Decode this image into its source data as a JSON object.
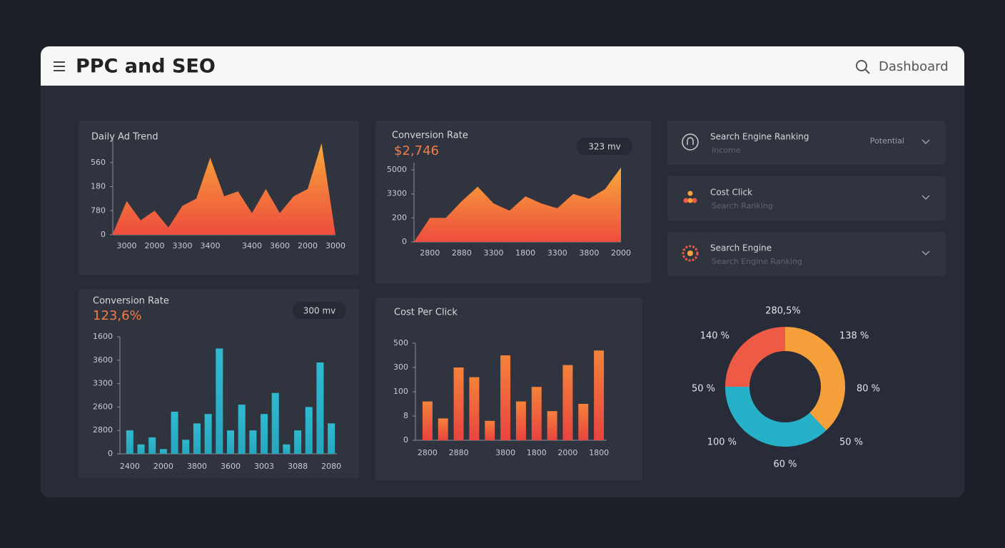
{
  "header": {
    "title": "PPC and SEO",
    "search": "Dashboard"
  },
  "list": [
    {
      "title": "Search Engine Ranking",
      "subtitle": "Income",
      "tag": "Potential"
    },
    {
      "title": "Cost Click",
      "subtitle": "Search Ranking"
    },
    {
      "title": "Search Engine",
      "subtitle": "Search Engine Ranking"
    }
  ],
  "chart_data": [
    {
      "type": "area",
      "title": "Daily Ad Trend",
      "colors": [
        "#f8a83a",
        "#ee4d3e"
      ],
      "categories": [
        null,
        "3000",
        null,
        "2000",
        null,
        "3300",
        null,
        "3400",
        null,
        null,
        "3400",
        null,
        "3600",
        null,
        "2000",
        null,
        "3000"
      ],
      "values": [
        0.05,
        1.4,
        0.6,
        1.0,
        0.3,
        1.2,
        1.5,
        3.2,
        1.6,
        1.8,
        0.9,
        1.9,
        0.9,
        1.6,
        1.9,
        3.8,
        0
      ],
      "ylim": [
        0,
        4
      ],
      "yticks": [
        0,
        {
          "value": 1,
          "label": "780"
        },
        {
          "value": 2,
          "label": "180"
        },
        {
          "value": 3,
          "label": "560"
        }
      ]
    },
    {
      "type": "area",
      "title": "Conversion Rate",
      "kpi": "$2,746",
      "badge": "323 mv",
      "colors": [
        "#f8a83a",
        "#ee4d3e"
      ],
      "categories": [
        null,
        "2800",
        null,
        "2880",
        null,
        "3300",
        null,
        "1800",
        null,
        "3300",
        null,
        "3800",
        null,
        "2000"
      ],
      "values": [
        0,
        1.0,
        1.0,
        1.7,
        2.3,
        1.6,
        1.3,
        1.9,
        1.6,
        1.4,
        2.0,
        1.8,
        2.2,
        3.1
      ],
      "ylim": [
        0,
        3.3
      ],
      "yticks": [
        0,
        {
          "value": 1,
          "label": "200"
        },
        {
          "value": 2,
          "label": "3300"
        },
        {
          "value": 3,
          "label": "5000"
        }
      ]
    },
    {
      "type": "bar",
      "title": "Conversion Rate",
      "kpi": "123,6%",
      "badge": "300 mv",
      "colors": [
        "#2fbad0",
        "#26a6bf"
      ],
      "categories": [
        "2400",
        null,
        null,
        "2000",
        null,
        null,
        "3800",
        null,
        null,
        "3600",
        null,
        null,
        "3003",
        null,
        null,
        "3088",
        null,
        null,
        "2080"
      ],
      "values": [
        1.0,
        0.4,
        0.7,
        0.2,
        1.8,
        0.6,
        1.3,
        1.7,
        4.5,
        1.0,
        2.1,
        1.0,
        1.7,
        2.6,
        0.4,
        1.0,
        2.0,
        3.9,
        1.3
      ],
      "ylim": [
        0,
        5
      ],
      "yticks": [
        0,
        {
          "value": 1,
          "label": "2800"
        },
        {
          "value": 2,
          "label": "2600"
        },
        {
          "value": 3,
          "label": "3300"
        },
        {
          "value": 4,
          "label": "3600"
        },
        {
          "value": 5,
          "label": "1600"
        }
      ]
    },
    {
      "type": "bar",
      "title": "Cost Per Click",
      "colors": [
        "#f4823a",
        "#e8443f"
      ],
      "categories": [
        "2800",
        null,
        "2880",
        null,
        null,
        "3800",
        null,
        "1800",
        null,
        "2000",
        null,
        "1800"
      ],
      "values": [
        1.6,
        0.9,
        3.0,
        2.6,
        0.8,
        3.5,
        1.6,
        2.2,
        1.2,
        3.1,
        1.5,
        3.7
      ],
      "ylim": [
        0,
        4
      ],
      "yticks": [
        0,
        {
          "value": 1,
          "label": "8"
        },
        {
          "value": 2,
          "label": "100"
        },
        {
          "value": 3,
          "label": "300"
        },
        {
          "value": 4,
          "label": "500"
        }
      ]
    },
    {
      "type": "donut",
      "values": [
        38,
        37,
        25
      ],
      "colors": [
        "#f5a03a",
        "#27b1c9",
        "#ee5a45"
      ],
      "annotations": [
        "280,5%",
        "140 %",
        "138 %",
        "50 %",
        "80 %",
        "100 %",
        "50 %",
        "60 %"
      ]
    }
  ]
}
